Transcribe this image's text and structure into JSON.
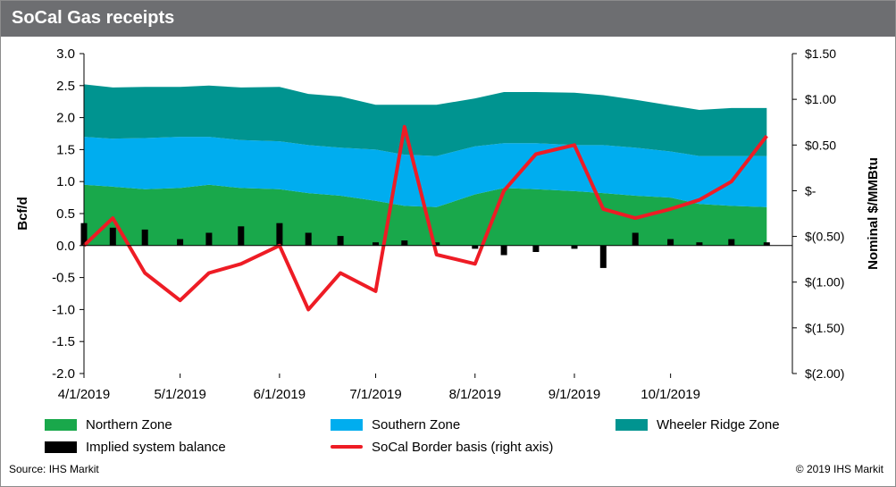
{
  "window": {
    "title": "SoCal Gas receipts"
  },
  "footer": {
    "source": "Source: IHS Markit",
    "copyright": "© 2019 IHS Markit"
  },
  "legend": [
    {
      "label": "Northern Zone",
      "color": "#19a84b",
      "kind": "area"
    },
    {
      "label": "Southern Zone",
      "color": "#00adef",
      "kind": "area"
    },
    {
      "label": "Wheeler Ridge Zone",
      "color": "#009490",
      "kind": "area"
    },
    {
      "label": "Implied system balance",
      "color": "#000000",
      "kind": "bar"
    },
    {
      "label": "SoCal Border basis (right axis)",
      "color": "#ee1c25",
      "kind": "line"
    }
  ],
  "chart_data": {
    "type": "area",
    "title": "SoCal Gas receipts",
    "ylabel": "Bcf/d",
    "ylabel_right": "Nominal $/MMBtu",
    "ylim": [
      -2.0,
      3.0
    ],
    "ylim_right": [
      -2.0,
      1.5
    ],
    "x_ticks": [
      "4/1/2019",
      "5/1/2019",
      "6/1/2019",
      "7/1/2019",
      "8/1/2019",
      "9/1/2019",
      "10/1/2019"
    ],
    "y_ticks": [
      "3.0",
      "2.5",
      "2.0",
      "1.5",
      "1.0",
      "0.5",
      "0.0",
      "-0.5",
      "-1.0",
      "-1.5",
      "-2.0"
    ],
    "y_ticks_right": [
      "$1.50",
      "$1.00",
      "$0.50",
      "$-",
      "$(0.50)",
      "$(1.00)",
      "$(1.50)",
      "$(2.00)"
    ],
    "x_dates": [
      "2019-04-01",
      "2019-04-10",
      "2019-04-20",
      "2019-05-01",
      "2019-05-10",
      "2019-05-20",
      "2019-06-01",
      "2019-06-10",
      "2019-06-20",
      "2019-07-01",
      "2019-07-10",
      "2019-07-20",
      "2019-08-01",
      "2019-08-10",
      "2019-08-20",
      "2019-09-01",
      "2019-09-10",
      "2019-09-20",
      "2019-10-01",
      "2019-10-10",
      "2019-10-20",
      "2019-10-31"
    ],
    "series": [
      {
        "name": "Northern Zone",
        "kind": "stacked-area",
        "color": "#19a84b",
        "values": [
          0.95,
          0.92,
          0.88,
          0.9,
          0.95,
          0.9,
          0.88,
          0.82,
          0.78,
          0.7,
          0.62,
          0.6,
          0.8,
          0.9,
          0.88,
          0.85,
          0.82,
          0.78,
          0.75,
          0.65,
          0.62,
          0.6
        ]
      },
      {
        "name": "Southern Zone",
        "kind": "stacked-area",
        "color": "#00adef",
        "values": [
          0.75,
          0.75,
          0.8,
          0.8,
          0.75,
          0.75,
          0.75,
          0.75,
          0.75,
          0.8,
          0.8,
          0.8,
          0.75,
          0.7,
          0.72,
          0.72,
          0.75,
          0.75,
          0.72,
          0.75,
          0.78,
          0.8
        ]
      },
      {
        "name": "Wheeler Ridge Zone",
        "kind": "stacked-area",
        "color": "#009490",
        "values": [
          0.82,
          0.8,
          0.8,
          0.78,
          0.8,
          0.82,
          0.85,
          0.8,
          0.8,
          0.7,
          0.78,
          0.8,
          0.75,
          0.8,
          0.8,
          0.82,
          0.78,
          0.75,
          0.72,
          0.72,
          0.75,
          0.75
        ]
      },
      {
        "name": "Implied system balance",
        "kind": "bar",
        "color": "#000000",
        "values": [
          0.35,
          0.28,
          0.25,
          0.1,
          0.2,
          0.3,
          0.35,
          0.2,
          0.15,
          0.05,
          0.08,
          0.05,
          -0.05,
          -0.15,
          -0.1,
          -0.05,
          -0.35,
          0.2,
          0.1,
          0.05,
          0.1,
          0.05
        ]
      },
      {
        "name": "SoCal Border basis (right axis)",
        "kind": "line",
        "axis": "right",
        "color": "#ee1c25",
        "values": [
          -0.6,
          -0.3,
          -0.9,
          -1.2,
          -0.9,
          -0.8,
          -0.6,
          -1.3,
          -0.9,
          -1.1,
          0.7,
          -0.7,
          -0.8,
          0.0,
          0.4,
          0.5,
          -0.2,
          -0.3,
          -0.2,
          -0.1,
          0.1,
          0.6
        ]
      }
    ]
  }
}
